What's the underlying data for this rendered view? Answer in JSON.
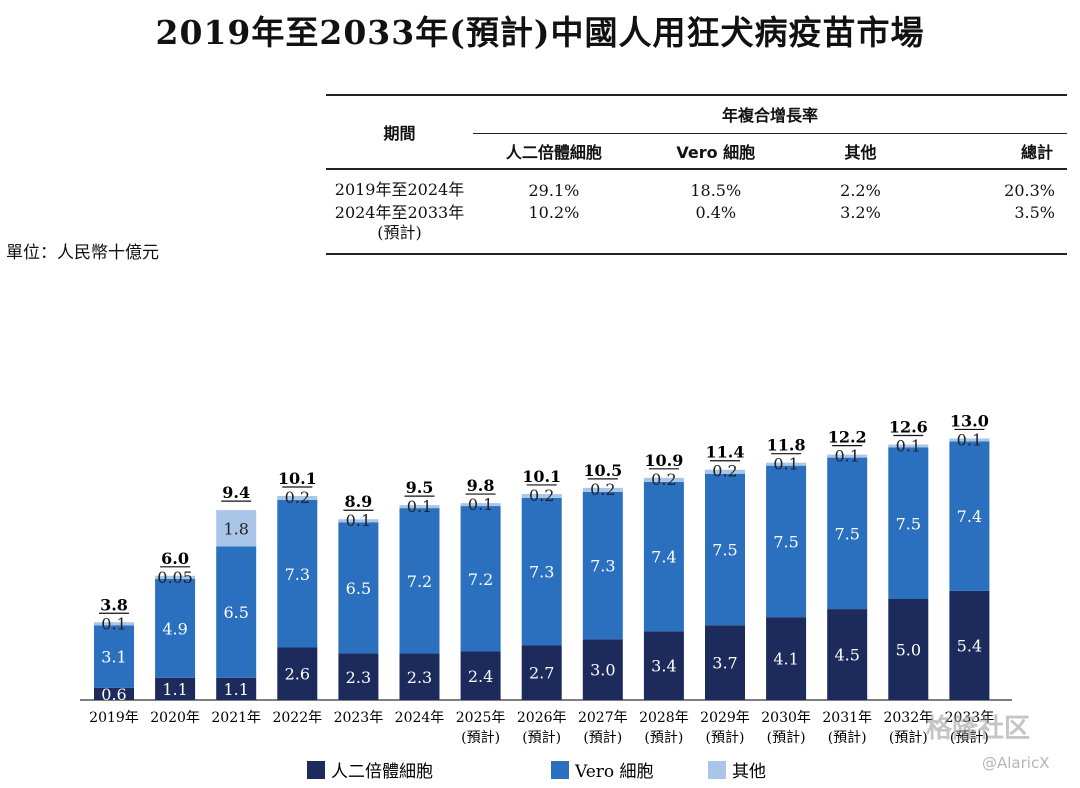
{
  "title": "2019年至2033年(預計)中國人用狂犬病疫苗市場",
  "unit": "單位：人民幣十億元",
  "cagr_table": {
    "period_header": "期間",
    "group_header": "年複合增長率",
    "columns": [
      "人二倍體細胞",
      "Vero 細胞",
      "其他",
      "總計"
    ],
    "rows": [
      {
        "period": "2019年至2024年",
        "period_note": "",
        "values": [
          "29.1%",
          "18.5%",
          "2.2%",
          "20.3%"
        ]
      },
      {
        "period": "2024年至2033年",
        "period_note": "(預計)",
        "values": [
          "10.2%",
          "0.4%",
          "3.2%",
          "3.5%"
        ]
      }
    ]
  },
  "chart_data": {
    "type": "bar",
    "stacked": true,
    "categories": [
      "2019年",
      "2020年",
      "2021年",
      "2022年",
      "2023年",
      "2024年",
      "2025年",
      "2026年",
      "2027年",
      "2028年",
      "2029年",
      "2030年",
      "2031年",
      "2032年",
      "2033年"
    ],
    "category_notes": [
      "",
      "",
      "",
      "",
      "",
      "",
      "(預計)",
      "(預計)",
      "(預計)",
      "(預計)",
      "(預計)",
      "(預計)",
      "(預計)",
      "(預計)",
      "(預計)"
    ],
    "series": [
      {
        "name": "人二倍體細胞",
        "color": "#1c2a5c",
        "values": [
          0.6,
          1.1,
          1.1,
          2.6,
          2.3,
          2.3,
          2.4,
          2.7,
          3.0,
          3.4,
          3.7,
          4.1,
          4.5,
          5.0,
          5.4
        ]
      },
      {
        "name": "Vero 細胞",
        "color": "#2b6fbf",
        "values": [
          3.1,
          4.9,
          6.5,
          7.3,
          6.5,
          7.2,
          7.2,
          7.3,
          7.3,
          7.4,
          7.5,
          7.5,
          7.5,
          7.5,
          7.4
        ]
      },
      {
        "name": "其他",
        "color": "#a9c6e8",
        "values": [
          0.1,
          0.05,
          1.8,
          0.2,
          0.1,
          0.1,
          0.1,
          0.2,
          0.2,
          0.2,
          0.2,
          0.1,
          0.1,
          0.1,
          0.1
        ]
      }
    ],
    "totals": [
      "3.8",
      "6.0",
      "9.4",
      "10.1",
      "8.9",
      "9.5",
      "9.8",
      "10.1",
      "10.5",
      "10.9",
      "11.4",
      "11.8",
      "12.2",
      "12.6",
      "13.0"
    ],
    "value_labels": [
      [
        "0.6",
        "1.1",
        "1.1",
        "2.6",
        "2.3",
        "2.3",
        "2.4",
        "2.7",
        "3.0",
        "3.4",
        "3.7",
        "4.1",
        "4.5",
        "5.0",
        "5.4"
      ],
      [
        "3.1",
        "4.9",
        "6.5",
        "7.3",
        "6.5",
        "7.2",
        "7.2",
        "7.3",
        "7.3",
        "7.4",
        "7.5",
        "7.5",
        "7.5",
        "7.5",
        "7.4"
      ],
      [
        "0.1",
        "0.05",
        "1.8",
        "0.2",
        "0.1",
        "0.1",
        "0.1",
        "0.2",
        "0.2",
        "0.2",
        "0.2",
        "0.1",
        "0.1",
        "0.1",
        "0.1"
      ]
    ],
    "legend_position": "bottom",
    "ylim": [
      0,
      13.5
    ]
  },
  "watermark": "格隆社区",
  "watermark_handle": "@AlaricX"
}
